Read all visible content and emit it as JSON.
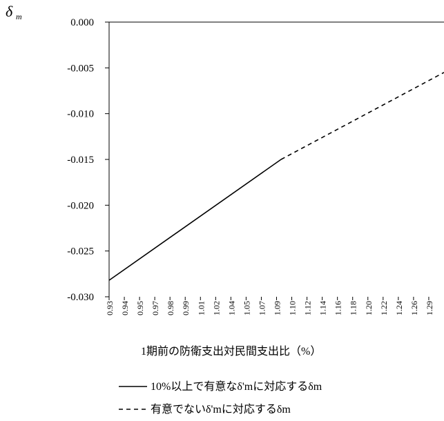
{
  "chart_data": {
    "type": "line",
    "ylabel": "δ",
    "ylabel_subscript": "m",
    "xlabel": "1期前の防衛支出対民間支出比（%）",
    "ylim": [
      -0.03,
      0.0
    ],
    "yticks": [
      "0.000",
      "-0.005",
      "-0.010",
      "-0.015",
      "-0.020",
      "-0.025",
      "-0.030"
    ],
    "yticks_values": [
      0.0,
      -0.005,
      -0.01,
      -0.015,
      -0.02,
      -0.025,
      -0.03
    ],
    "xticks": [
      "0.93",
      "0.94",
      "0.95",
      "0.97",
      "0.98",
      "0.99",
      "1.01",
      "1.02",
      "1.04",
      "1.05",
      "1.07",
      "1.09",
      "1.10",
      "1.12",
      "1.14",
      "1.16",
      "1.18",
      "1.20",
      "1.22",
      "1.24",
      "1.26",
      "1.29"
    ],
    "grid": false,
    "legend_position": "bottom",
    "series": [
      {
        "name": "10%以上で有意なδ'mに対応するδm",
        "style": "solid",
        "x": [
          0.93,
          1.12
        ],
        "y": [
          -0.0282,
          -0.015
        ]
      },
      {
        "name": "有意でないδ'mに対応するδm",
        "style": "dashed",
        "x": [
          1.12,
          1.3
        ],
        "y": [
          -0.015,
          -0.0055
        ]
      }
    ]
  }
}
